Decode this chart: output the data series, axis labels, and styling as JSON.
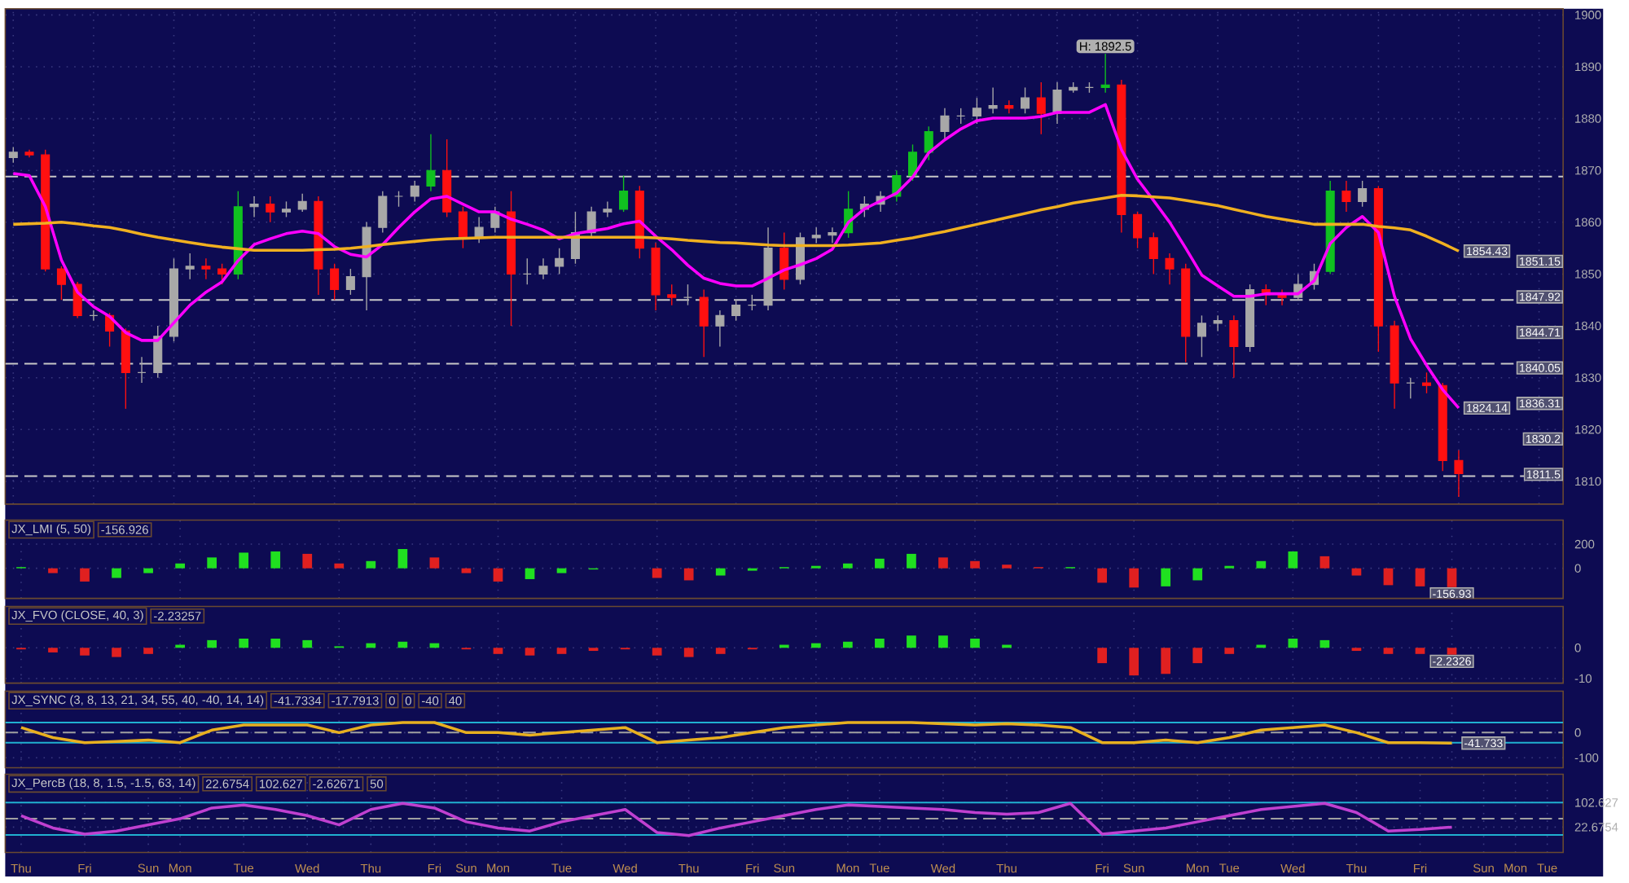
{
  "chart_data": [
    {
      "type": "candlestick",
      "categories": [
        null,
        null,
        null,
        null,
        null,
        null,
        null,
        null,
        null,
        null,
        null,
        null,
        null,
        null,
        null,
        null,
        null,
        null,
        null,
        null,
        null,
        null,
        null,
        null,
        null,
        null,
        null,
        null,
        null,
        null,
        null,
        null,
        null,
        null,
        null,
        null,
        null,
        null,
        null,
        null,
        null,
        null,
        null,
        null,
        null,
        null,
        null,
        null,
        null,
        null,
        null,
        null,
        null,
        null,
        null,
        null,
        null,
        null,
        null,
        null,
        null,
        null,
        null,
        null,
        null,
        null,
        null,
        null,
        null,
        null,
        null,
        null,
        null,
        null,
        null,
        null,
        null,
        null,
        null,
        null,
        null,
        null,
        null,
        null,
        null,
        null,
        null,
        null,
        null,
        null,
        null,
        null,
        null,
        null,
        null,
        null,
        null
      ],
      "ohlc": [
        [
          1872.5,
          1874.5,
          1871.5,
          1873.5
        ],
        [
          1873.5,
          1874,
          1872.5,
          1873
        ],
        [
          1873,
          1874,
          1850.5,
          1851
        ],
        [
          1851,
          1851.5,
          1845,
          1848
        ],
        [
          1848,
          1848.5,
          1841.5,
          1842
        ],
        [
          1842,
          1843,
          1841,
          1842
        ],
        [
          1842,
          1842.5,
          1836,
          1839
        ],
        [
          1839,
          1839.5,
          1824,
          1831
        ],
        [
          1831,
          1834,
          1829,
          1831
        ],
        [
          1831,
          1840,
          1830,
          1838
        ],
        [
          1838,
          1853,
          1837,
          1851
        ],
        [
          1851,
          1854,
          1849,
          1851.5
        ],
        [
          1851.5,
          1853,
          1849,
          1851
        ],
        [
          1851,
          1852,
          1848,
          1850
        ],
        [
          1850,
          1866,
          1849,
          1863
        ],
        [
          1863,
          1865,
          1861,
          1863.5
        ],
        [
          1863.5,
          1865,
          1860,
          1862
        ],
        [
          1862,
          1864,
          1861,
          1862.5
        ],
        [
          1862.5,
          1865.5,
          1862,
          1864
        ],
        [
          1864,
          1865,
          1846,
          1851
        ],
        [
          1851,
          1852,
          1845,
          1847
        ],
        [
          1847,
          1851,
          1846,
          1849.5
        ],
        [
          1849.5,
          1860,
          1843,
          1859
        ],
        [
          1859,
          1866,
          1858,
          1865
        ],
        [
          1865,
          1866,
          1863,
          1865
        ],
        [
          1865,
          1868,
          1864,
          1867
        ],
        [
          1867,
          1877,
          1866,
          1870
        ],
        [
          1870,
          1876,
          1861,
          1862
        ],
        [
          1862,
          1863,
          1855,
          1857
        ],
        [
          1857,
          1861,
          1856,
          1859
        ],
        [
          1859,
          1863,
          1858,
          1862
        ],
        [
          1862,
          1866,
          1840,
          1850
        ],
        [
          1850,
          1853,
          1848,
          1850
        ],
        [
          1850,
          1853,
          1849,
          1851.5
        ],
        [
          1851.5,
          1855,
          1850,
          1853
        ],
        [
          1853,
          1862,
          1852,
          1858
        ],
        [
          1858,
          1863,
          1857,
          1862
        ],
        [
          1862,
          1864,
          1861,
          1862.5
        ],
        [
          1862.5,
          1869,
          1862,
          1866
        ],
        [
          1866,
          1867,
          1853,
          1855
        ],
        [
          1855,
          1856,
          1843,
          1846
        ],
        [
          1846,
          1848,
          1844,
          1845.5
        ],
        [
          1845.5,
          1848,
          1844,
          1845.5
        ],
        [
          1845.5,
          1847,
          1834,
          1840
        ],
        [
          1840,
          1843,
          1836,
          1842
        ],
        [
          1842,
          1845,
          1841,
          1844
        ],
        [
          1844,
          1846,
          1843,
          1844
        ],
        [
          1844,
          1859,
          1843,
          1855
        ],
        [
          1855,
          1858,
          1847,
          1849
        ],
        [
          1849,
          1858,
          1848,
          1857
        ],
        [
          1857,
          1859,
          1856,
          1857.5
        ],
        [
          1857.5,
          1859,
          1856,
          1858
        ],
        [
          1858,
          1866,
          1857,
          1862.5
        ],
        [
          1862.5,
          1865,
          1861,
          1863.5
        ],
        [
          1863.5,
          1866,
          1862,
          1865
        ],
        [
          1865,
          1870,
          1864,
          1869
        ],
        [
          1869,
          1875,
          1868,
          1873.5
        ],
        [
          1873.5,
          1878.5,
          1872,
          1877.5
        ],
        [
          1877.5,
          1882,
          1876,
          1880.5
        ],
        [
          1880.5,
          1882,
          1879,
          1880.5
        ],
        [
          1880.5,
          1884,
          1879,
          1882
        ],
        [
          1882,
          1886,
          1881,
          1882.5
        ],
        [
          1882.5,
          1883.5,
          1881,
          1882
        ],
        [
          1882,
          1886,
          1881,
          1884
        ],
        [
          1884,
          1887,
          1877,
          1881
        ],
        [
          1881,
          1887,
          1879,
          1885.5
        ],
        [
          1885.5,
          1887,
          1885,
          1886
        ],
        [
          1886,
          1887,
          1885,
          1886
        ],
        [
          1886,
          1892.5,
          1885,
          1886.5
        ],
        [
          1886.5,
          1887.5,
          1858,
          1861.5
        ],
        [
          1861.5,
          1862,
          1855,
          1857
        ],
        [
          1857,
          1858,
          1850,
          1853
        ],
        [
          1853,
          1854,
          1848,
          1851
        ],
        [
          1851,
          1852,
          1833,
          1838
        ],
        [
          1838,
          1842,
          1834,
          1840.5
        ],
        [
          1840.5,
          1842,
          1839,
          1841
        ],
        [
          1841,
          1842,
          1830,
          1836
        ],
        [
          1836,
          1848,
          1835,
          1847
        ],
        [
          1847,
          1848,
          1844,
          1846
        ],
        [
          1846,
          1847,
          1844,
          1845.5
        ],
        [
          1845.5,
          1850,
          1845,
          1848
        ],
        [
          1848,
          1852,
          1847,
          1850.5
        ],
        [
          1850.5,
          1868,
          1850,
          1866
        ],
        [
          1866,
          1868,
          1862,
          1864
        ],
        [
          1864,
          1868,
          1863,
          1866.5
        ],
        [
          1866.5,
          1867,
          1835,
          1840
        ],
        [
          1840,
          1841,
          1824,
          1829
        ],
        [
          1829,
          1830,
          1826,
          1829
        ],
        [
          1829,
          1831,
          1827,
          1828.5
        ],
        [
          1828.5,
          1829,
          1812,
          1814
        ],
        [
          1814,
          1816,
          1807,
          1811.5
        ],
        null,
        null,
        null,
        null,
        null,
        null
      ],
      "colors": [
        "#a8a8a8",
        "#ff1010",
        "#ff1010",
        "#ff1010",
        "#ff1010",
        "#a8a8a8",
        "#ff1010",
        "#ff1010",
        "#a8a8a8",
        "#a8a8a8",
        "#a8a8a8",
        "#a8a8a8",
        "#ff1010",
        "#ff1010",
        "#10c020",
        "#a8a8a8",
        "#ff1010",
        "#a8a8a8",
        "#a8a8a8",
        "#ff1010",
        "#ff1010",
        "#a8a8a8",
        "#a8a8a8",
        "#a8a8a8",
        "#a8a8a8",
        "#a8a8a8",
        "#10c020",
        "#ff1010",
        "#ff1010",
        "#a8a8a8",
        "#a8a8a8",
        "#ff1010",
        "#a8a8a8",
        "#a8a8a8",
        "#a8a8a8",
        "#a8a8a8",
        "#a8a8a8",
        "#a8a8a8",
        "#10c020",
        "#ff1010",
        "#ff1010",
        "#ff1010",
        "#a8a8a8",
        "#ff1010",
        "#a8a8a8",
        "#a8a8a8",
        "#a8a8a8",
        "#a8a8a8",
        "#ff1010",
        "#a8a8a8",
        "#a8a8a8",
        "#a8a8a8",
        "#10c020",
        "#a8a8a8",
        "#a8a8a8",
        "#10c020",
        "#10c020",
        "#10c020",
        "#a8a8a8",
        "#a8a8a8",
        "#a8a8a8",
        "#a8a8a8",
        "#ff1010",
        "#a8a8a8",
        "#ff1010",
        "#a8a8a8",
        "#a8a8a8",
        "#a8a8a8",
        "#10c020",
        "#ff1010",
        "#ff1010",
        "#ff1010",
        "#ff1010",
        "#ff1010",
        "#a8a8a8",
        "#a8a8a8",
        "#ff1010",
        "#a8a8a8",
        "#ff1010",
        "#ff1010",
        "#a8a8a8",
        "#a8a8a8",
        "#10c020",
        "#ff1010",
        "#a8a8a8",
        "#ff1010",
        "#ff1010",
        "#a8a8a8",
        "#ff1010",
        "#ff1010",
        "#ff1010",
        null,
        null,
        null,
        null,
        null,
        null
      ],
      "series": [
        {
          "type": "line",
          "color": "#ff00ff",
          "values": [
            1869.4,
            1869,
            1863,
            1852.7,
            1846.5,
            1843.7,
            1841.8,
            1838.7,
            1837.2,
            1837.2,
            1840.6,
            1844,
            1846.5,
            1848.5,
            1852.6,
            1855.7,
            1856.8,
            1857.8,
            1858.3,
            1857.8,
            1855.3,
            1853.8,
            1853.3,
            1855.7,
            1859,
            1862,
            1864.5,
            1865,
            1863.5,
            1862,
            1862,
            1860.6,
            1859.6,
            1858.5,
            1856.8,
            1857.8,
            1858.3,
            1858.8,
            1859.7,
            1860.2,
            1857.3,
            1854.7,
            1851.7,
            1849.2,
            1848.2,
            1847.7,
            1847.7,
            1849.2,
            1850.8,
            1851.8,
            1853,
            1854.8,
            1860,
            1862.6,
            1864.1,
            1865.6,
            1868.7,
            1873.4,
            1875.9,
            1878,
            1879.6,
            1880.1,
            1880.1,
            1880.1,
            1880.4,
            1881.2,
            1881.2,
            1881.2,
            1882.7,
            1874,
            1868.3,
            1864.2,
            1860,
            1855,
            1849.8,
            1847.7,
            1845.7,
            1845.7,
            1846.2,
            1846.2,
            1846.2,
            1848.7,
            1855.9,
            1859,
            1861.1,
            1858,
            1845.7,
            1837.5,
            1832.4,
            1827.7,
            1824.14,
            null,
            null,
            null,
            null,
            null,
            null
          ],
          "value_labels": [
            null,
            null,
            null,
            null,
            null,
            null,
            null,
            null,
            null,
            null,
            null,
            null,
            null,
            null,
            null,
            null,
            null,
            null,
            null,
            null,
            null,
            null,
            null,
            null,
            null,
            null,
            null,
            null,
            null,
            null,
            null,
            null,
            null,
            null,
            null,
            null,
            null,
            null,
            null,
            null,
            null,
            null,
            null,
            null,
            null,
            null,
            null,
            null,
            null,
            null,
            null,
            null,
            null,
            null,
            null,
            null,
            null,
            null,
            null,
            null,
            null,
            null,
            null,
            null,
            null,
            null,
            null,
            null,
            null,
            null,
            null,
            null,
            null,
            null,
            null,
            null,
            null,
            null,
            null,
            null,
            null,
            null,
            null,
            null,
            null,
            null,
            null,
            null,
            null,
            null,
            "1824.14",
            null,
            null,
            null,
            null,
            null,
            null
          ]
        },
        {
          "type": "line",
          "color": "#f0b020",
          "values": [
            1859.6,
            1859.7,
            1859.8,
            1860,
            1859.7,
            1859.3,
            1859,
            1858.4,
            1857.7,
            1857.1,
            1856.6,
            1856.1,
            1855.6,
            1855.2,
            1854.9,
            1854.6,
            1854.6,
            1854.6,
            1854.6,
            1854.7,
            1854.8,
            1855,
            1855.3,
            1855.7,
            1856,
            1856.3,
            1856.6,
            1856.8,
            1856.9,
            1857,
            1857.1,
            1857.1,
            1857.1,
            1857.1,
            1857.1,
            1857.1,
            1857.1,
            1857.1,
            1857.1,
            1857.1,
            1857,
            1856.8,
            1856.5,
            1856.3,
            1856.1,
            1856,
            1855.8,
            1855.6,
            1855.5,
            1855.5,
            1855.5,
            1855.5,
            1855.6,
            1855.8,
            1856,
            1856.5,
            1857,
            1857.6,
            1858.2,
            1858.9,
            1859.6,
            1860.3,
            1861,
            1861.7,
            1862.4,
            1863,
            1863.7,
            1864.2,
            1864.7,
            1865.2,
            1865.1,
            1864.9,
            1864.7,
            1864.2,
            1863.7,
            1863.2,
            1862.5,
            1861.8,
            1861.1,
            1860.6,
            1860.1,
            1859.6,
            1859.6,
            1859.6,
            1859.6,
            1859.2,
            1858.9,
            1858.5,
            1857.3,
            1855.9,
            1854.43,
            null,
            null,
            null,
            null,
            null,
            null
          ],
          "value_labels": [
            null,
            null,
            null,
            null,
            null,
            null,
            null,
            null,
            null,
            null,
            null,
            null,
            null,
            null,
            null,
            null,
            null,
            null,
            null,
            null,
            null,
            null,
            null,
            null,
            null,
            null,
            null,
            null,
            null,
            null,
            null,
            null,
            null,
            null,
            null,
            null,
            null,
            null,
            null,
            null,
            null,
            null,
            null,
            null,
            null,
            null,
            null,
            null,
            null,
            null,
            null,
            null,
            null,
            null,
            null,
            null,
            null,
            null,
            null,
            null,
            null,
            null,
            null,
            null,
            null,
            null,
            null,
            null,
            null,
            null,
            null,
            null,
            null,
            null,
            null,
            null,
            null,
            null,
            null,
            null,
            null,
            null,
            null,
            null,
            null,
            null,
            null,
            null,
            null,
            null,
            "1854.43",
            null,
            null,
            null,
            null,
            null,
            null
          ]
        }
      ],
      "ylim": [
        1805.6,
        1901.2
      ],
      "yticks": [
        1810,
        1820,
        1830,
        1840,
        1850,
        1860,
        1870,
        1880,
        1890,
        1900
      ],
      "grid": true,
      "tick_labels": "y",
      "ref_lines": [
        {
          "axis": "y",
          "value": 1868.8,
          "color": "#c8c8c8",
          "line_style": "dashed"
        },
        {
          "axis": "y",
          "value": 1845,
          "color": "#c8c8c8",
          "line_style": "dashed"
        },
        {
          "axis": "y",
          "value": 1832.7,
          "color": "#c8c8c8",
          "line_style": "dashed"
        },
        {
          "axis": "y",
          "value": 1811,
          "color": "#c8c8c8",
          "line_style": "dashed"
        }
      ],
      "annotations": [
        {
          "text": "H: 1892.5",
          "y": 1892.5
        },
        "1851.15",
        "1847.92",
        "1844.71",
        "1840.05",
        "1836.31",
        "1830.2",
        "1811.5"
      ]
    },
    {
      "type": "bar",
      "title": "JX_LMI (5, 50)",
      "categories": [
        null,
        null,
        null,
        null,
        null,
        null,
        null,
        null,
        null,
        null,
        null,
        null,
        null,
        null,
        null,
        null,
        null,
        null,
        null,
        null,
        null,
        null,
        null,
        null,
        null,
        null,
        null,
        null,
        null,
        null,
        null,
        null,
        null,
        null,
        null,
        null,
        null,
        null,
        null,
        null,
        null,
        null,
        null,
        null,
        null,
        null,
        null,
        null,
        null
      ],
      "value_labels": [
        null,
        null,
        null,
        null,
        null,
        null,
        null,
        null,
        null,
        null,
        null,
        null,
        null,
        null,
        null,
        null,
        null,
        null,
        null,
        null,
        null,
        null,
        null,
        null,
        null,
        null,
        null,
        null,
        null,
        null,
        null,
        null,
        null,
        null,
        null,
        null,
        null,
        null,
        null,
        null,
        null,
        null,
        null,
        null,
        null,
        "-156.93",
        null,
        null,
        null
      ],
      "values": [
        10,
        -40,
        -110,
        -80,
        -40,
        40,
        90,
        130,
        140,
        120,
        40,
        60,
        160,
        90,
        -40,
        -110,
        -90,
        -40,
        -10,
        0,
        -80,
        -100,
        -60,
        -20,
        10,
        20,
        40,
        80,
        120,
        90,
        60,
        30,
        10,
        10,
        -120,
        -160,
        -150,
        -100,
        20,
        60,
        140,
        100,
        -60,
        -140,
        -150,
        -156.93,
        null,
        null,
        null
      ],
      "colors": [
        "#20e020",
        "#e02020",
        "#e02020",
        "#20e020",
        "#20e020",
        "#20e020",
        "#20e020",
        "#20e020",
        "#20e020",
        "#e02020",
        "#e02020",
        "#20e020",
        "#20e020",
        "#e02020",
        "#e02020",
        "#e02020",
        "#20e020",
        "#20e020",
        "#20e020",
        "#20e020",
        "#e02020",
        "#e02020",
        "#20e020",
        "#20e020",
        "#20e020",
        "#20e020",
        "#20e020",
        "#20e020",
        "#20e020",
        "#e02020",
        "#e02020",
        "#e02020",
        "#e02020",
        "#20e020",
        "#e02020",
        "#e02020",
        "#20e020",
        "#20e020",
        "#20e020",
        "#20e020",
        "#20e020",
        "#e02020",
        "#e02020",
        "#e02020",
        "#e02020",
        "#e02020",
        null,
        null,
        null
      ],
      "ylim": [
        -250,
        400
      ],
      "yticks": [
        0,
        200
      ],
      "grid": true,
      "tick_labels": "y",
      "annotations": [
        "-156.926"
      ]
    },
    {
      "type": "bar",
      "title": "JX_FVO (CLOSE, 40, 3)",
      "categories": [
        null,
        null,
        null,
        null,
        null,
        null,
        null,
        null,
        null,
        null,
        null,
        null,
        null,
        null,
        null,
        null,
        null,
        null,
        null,
        null,
        null,
        null,
        null,
        null,
        null,
        null,
        null,
        null,
        null,
        null,
        null,
        null,
        null,
        null,
        null,
        null,
        null,
        null,
        null,
        null,
        null,
        null,
        null,
        null,
        null,
        null,
        null,
        null,
        null
      ],
      "value_labels": [
        null,
        null,
        null,
        null,
        null,
        null,
        null,
        null,
        null,
        null,
        null,
        null,
        null,
        null,
        null,
        null,
        null,
        null,
        null,
        null,
        null,
        null,
        null,
        null,
        null,
        null,
        null,
        null,
        null,
        null,
        null,
        null,
        null,
        null,
        null,
        null,
        null,
        null,
        null,
        null,
        null,
        null,
        null,
        null,
        null,
        "-2.2326",
        null,
        null,
        null
      ],
      "values": [
        -0.5,
        -1.5,
        -2.5,
        -3,
        -2,
        1,
        2.5,
        3,
        3,
        2.5,
        0.5,
        1.5,
        2,
        1.5,
        -0.5,
        -2,
        -2.5,
        -2,
        -1,
        -0.5,
        -2.5,
        -3,
        -2,
        -0.5,
        1,
        1.5,
        2,
        3,
        4,
        4,
        3,
        1,
        0,
        0,
        -5,
        -9,
        -8.5,
        -5,
        -2,
        1,
        3,
        2.5,
        -1,
        -2,
        -2,
        -2.2326,
        null,
        null,
        null
      ],
      "colors": [
        "#e02020",
        "#e02020",
        "#e02020",
        "#e02020",
        "#e02020",
        "#20e020",
        "#20e020",
        "#20e020",
        "#20e020",
        "#20e020",
        "#20e020",
        "#20e020",
        "#20e020",
        "#20e020",
        "#e02020",
        "#e02020",
        "#e02020",
        "#e02020",
        "#e02020",
        "#e02020",
        "#e02020",
        "#e02020",
        "#e02020",
        "#e02020",
        "#20e020",
        "#20e020",
        "#20e020",
        "#20e020",
        "#20e020",
        "#20e020",
        "#20e020",
        "#20e020",
        "#20e020",
        "#20e020",
        "#e02020",
        "#e02020",
        "#e02020",
        "#e02020",
        "#e02020",
        "#20e020",
        "#20e020",
        "#20e020",
        "#e02020",
        "#e02020",
        "#e02020",
        "#e02020",
        null,
        null,
        null
      ],
      "ylim": [
        -11.5,
        13.5
      ],
      "yticks": [
        0,
        -10
      ],
      "grid": true,
      "tick_labels": "y",
      "annotations": [
        "-2.23257"
      ]
    },
    {
      "type": "line",
      "title": "JX_SYNC (3, 8, 13, 21, 34, 55, 40, -40, 14, 14)",
      "categories": [
        null,
        null,
        null,
        null,
        null,
        null,
        null,
        null,
        null,
        null,
        null,
        null,
        null,
        null,
        null,
        null,
        null,
        null,
        null,
        null,
        null,
        null,
        null,
        null,
        null,
        null,
        null,
        null,
        null,
        null,
        null,
        null,
        null,
        null,
        null,
        null,
        null,
        null,
        null,
        null,
        null,
        null,
        null,
        null,
        null,
        null,
        null,
        null,
        null
      ],
      "series": [
        {
          "color": "#e8b020",
          "values": [
            20,
            -20,
            -40,
            -35,
            -30,
            -40,
            10,
            30,
            30,
            30,
            0,
            30,
            40,
            40,
            0,
            0,
            -10,
            0,
            10,
            20,
            -40,
            -30,
            -20,
            0,
            20,
            30,
            40,
            40,
            40,
            35,
            30,
            35,
            30,
            20,
            -40,
            -40,
            -30,
            -40,
            -20,
            10,
            20,
            30,
            0,
            -40,
            -40,
            -41.733,
            null,
            null,
            null
          ],
          "value_labels": [
            null,
            null,
            null,
            null,
            null,
            null,
            null,
            null,
            null,
            null,
            null,
            null,
            null,
            null,
            null,
            null,
            null,
            null,
            null,
            null,
            null,
            null,
            null,
            null,
            null,
            null,
            null,
            null,
            null,
            null,
            null,
            null,
            null,
            null,
            null,
            null,
            null,
            null,
            null,
            null,
            null,
            null,
            null,
            null,
            null,
            "-41.733",
            null,
            null,
            null
          ]
        }
      ],
      "ylim": [
        -140,
        165
      ],
      "yticks": [
        0,
        -100
      ],
      "grid": true,
      "tick_labels": "y",
      "ref_lines": [
        {
          "axis": "y",
          "value": 40,
          "color": "#20b0d0",
          "line_style": "solid"
        },
        {
          "axis": "y",
          "value": -40,
          "color": "#20b0d0",
          "line_style": "solid"
        },
        {
          "axis": "y",
          "value": 0,
          "color": "#a0a0a0",
          "line_style": "dashed"
        }
      ],
      "annotations": [
        "-41.7334",
        "-17.7913",
        "0",
        "0",
        "-40",
        "40"
      ]
    },
    {
      "type": "line",
      "title": "JX_PercB (18, 8, 1.5, -1.5, 63, 14)",
      "categories": [
        "Thu",
        null,
        "Fri",
        null,
        "Sun",
        "Mon",
        null,
        "Tue",
        null,
        "Wed",
        null,
        "Thu",
        null,
        "Fri",
        "Sun",
        "Mon",
        null,
        "Tue",
        null,
        "Wed",
        null,
        "Thu",
        null,
        "Fri",
        "Sun",
        null,
        "Mon",
        "Tue",
        null,
        "Wed",
        null,
        "Thu",
        null,
        null,
        "Fri",
        "Sun",
        null,
        "Mon",
        "Tue",
        null,
        "Wed",
        null,
        "Thu",
        null,
        "Fri",
        null,
        "Sun",
        "Mon",
        "Tue"
      ],
      "series": [
        {
          "color": "#c040d0",
          "values": [
            60,
            20,
            0,
            10,
            30,
            50,
            85,
            95,
            80,
            60,
            30,
            80,
            100,
            85,
            40,
            20,
            10,
            40,
            60,
            80,
            5,
            -5,
            20,
            40,
            60,
            80,
            95,
            90,
            85,
            80,
            70,
            65,
            70,
            100,
            0,
            10,
            20,
            40,
            60,
            80,
            90,
            100,
            70,
            10,
            15,
            22.6754,
            null,
            null,
            null
          ]
        }
      ],
      "ylim": [
        -60,
        195
      ],
      "yticks": [
        {
          "value": 102.627,
          "label": "102.627"
        },
        {
          "value": 22.6754,
          "label": "22.6754"
        }
      ],
      "grid": true,
      "ref_lines": [
        {
          "axis": "y",
          "value": 102.627,
          "color": "#20b0d0",
          "line_style": "solid"
        },
        {
          "axis": "y",
          "value": -2.62671,
          "color": "#20b0d0",
          "line_style": "solid"
        },
        {
          "axis": "y",
          "value": 50,
          "color": "#a0a0a0",
          "line_style": "dashed"
        }
      ],
      "annotations": [
        "22.6754",
        "102.627",
        "-2.62671",
        "50"
      ]
    }
  ]
}
